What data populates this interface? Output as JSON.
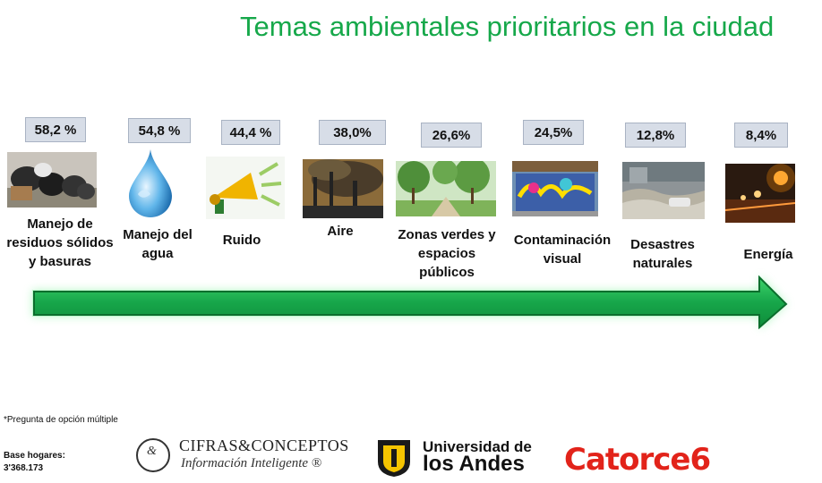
{
  "title": "Temas ambientales prioritarios en la ciudad",
  "items": [
    {
      "value": "58,2 %",
      "label": "Manejo de residuos sólidos y basuras",
      "percent": 58.2
    },
    {
      "value": "54,8 %",
      "label": "Manejo del agua",
      "percent": 54.8
    },
    {
      "value": "44,4 %",
      "label": "Ruido",
      "percent": 44.4
    },
    {
      "value": "38,0%",
      "label": "Aire",
      "percent": 38.0
    },
    {
      "value": "26,6%",
      "label": "Zonas verdes y espacios públicos",
      "percent": 26.6
    },
    {
      "value": "24,5%",
      "label": "Contaminación visual",
      "percent": 24.5
    },
    {
      "value": "12,8%",
      "label": "Desastres naturales",
      "percent": 12.8
    },
    {
      "value": "8,4%",
      "label": "Energía",
      "percent": 8.4
    }
  ],
  "footnote": "*Pregunta de opción múltiple",
  "base_label": "Base hogares:",
  "base_value": "3'368.173",
  "logos": {
    "cifras_amp": "&",
    "cifras_name": "CIFRAS&CONCEPTOS",
    "cifras_tagline": "Información Inteligente ®",
    "andes_line1": "Universidad de",
    "andes_line2": "los Andes",
    "catorce": "Catorce6"
  },
  "colors": {
    "title": "#16a84a",
    "arrow": "#1fb24a",
    "badge_bg": "#d7dde7",
    "catorce": "#e2231a"
  },
  "icons": [
    "garbage-photo",
    "water-drop-icon",
    "megaphone-icon",
    "smokestack-photo",
    "park-photo",
    "graffiti-photo",
    "flood-photo",
    "night-lights-photo",
    "green-arrow"
  ]
}
